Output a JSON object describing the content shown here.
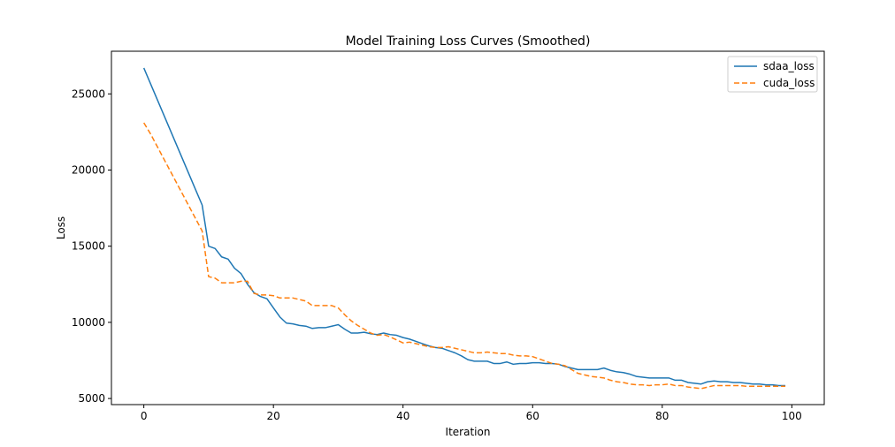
{
  "chart_data": {
    "type": "line",
    "title": "Model Training Loss Curves (Smoothed)",
    "xlabel": "Iteration",
    "ylabel": "Loss",
    "xlim": [
      -5,
      105
    ],
    "ylim": [
      4600,
      27800
    ],
    "xticks": [
      0,
      20,
      40,
      60,
      80,
      100
    ],
    "yticks": [
      5000,
      10000,
      15000,
      20000,
      25000
    ],
    "grid": false,
    "legend": "top-right",
    "x": [
      0,
      1,
      2,
      3,
      4,
      5,
      6,
      7,
      8,
      9,
      10,
      11,
      12,
      13,
      14,
      15,
      16,
      17,
      18,
      19,
      20,
      21,
      22,
      23,
      24,
      25,
      26,
      27,
      28,
      29,
      30,
      31,
      32,
      33,
      34,
      35,
      36,
      37,
      38,
      39,
      40,
      41,
      42,
      43,
      44,
      45,
      46,
      47,
      48,
      49,
      50,
      51,
      52,
      53,
      54,
      55,
      56,
      57,
      58,
      59,
      60,
      61,
      62,
      63,
      64,
      65,
      66,
      67,
      68,
      69,
      70,
      71,
      72,
      73,
      74,
      75,
      76,
      77,
      78,
      79,
      80,
      81,
      82,
      83,
      84,
      85,
      86,
      87,
      88,
      89,
      90,
      91,
      92,
      93,
      94,
      95,
      96,
      97,
      98,
      99
    ],
    "series": [
      {
        "name": "sdaa_loss",
        "color": "#1f77b4",
        "dash": "solid",
        "values": [
          26700,
          25700,
          24700,
          23700,
          22700,
          21700,
          20700,
          19700,
          18700,
          17700,
          15000,
          14850,
          14300,
          14150,
          13550,
          13200,
          12500,
          11950,
          11700,
          11550,
          10950,
          10350,
          9950,
          9900,
          9800,
          9750,
          9600,
          9650,
          9650,
          9750,
          9850,
          9550,
          9300,
          9300,
          9350,
          9250,
          9200,
          9300,
          9200,
          9150,
          9000,
          8900,
          8750,
          8600,
          8450,
          8350,
          8300,
          8150,
          8000,
          7800,
          7550,
          7450,
          7450,
          7450,
          7300,
          7300,
          7400,
          7250,
          7300,
          7300,
          7350,
          7350,
          7300,
          7300,
          7250,
          7100,
          7000,
          6900,
          6900,
          6900,
          6900,
          7000,
          6850,
          6750,
          6700,
          6600,
          6450,
          6400,
          6350,
          6350,
          6350,
          6350,
          6200,
          6200,
          6050,
          6000,
          5950,
          6100,
          6150,
          6100,
          6100,
          6050,
          6050,
          6000,
          5950,
          5950,
          5900,
          5900,
          5850,
          5850
        ]
      },
      {
        "name": "cuda_loss",
        "color": "#ff7f0e",
        "dash": "dashed",
        "values": [
          23100,
          22400,
          21600,
          20800,
          20000,
          19200,
          18400,
          17600,
          16800,
          16000,
          13000,
          12900,
          12600,
          12600,
          12600,
          12700,
          12700,
          11900,
          11800,
          11800,
          11750,
          11600,
          11600,
          11600,
          11500,
          11400,
          11100,
          11100,
          11100,
          11100,
          10950,
          10500,
          10100,
          9800,
          9550,
          9300,
          9150,
          9200,
          9050,
          8850,
          8650,
          8700,
          8600,
          8500,
          8400,
          8350,
          8350,
          8400,
          8300,
          8200,
          8100,
          8000,
          8000,
          8050,
          8000,
          7950,
          7950,
          7850,
          7800,
          7800,
          7750,
          7600,
          7450,
          7300,
          7250,
          7150,
          6900,
          6650,
          6550,
          6450,
          6400,
          6350,
          6200,
          6100,
          6050,
          5950,
          5900,
          5900,
          5850,
          5900,
          5900,
          5950,
          5850,
          5850,
          5750,
          5700,
          5650,
          5750,
          5850,
          5850,
          5850,
          5850,
          5850,
          5800,
          5800,
          5800,
          5800,
          5800,
          5800,
          5800
        ]
      }
    ]
  }
}
